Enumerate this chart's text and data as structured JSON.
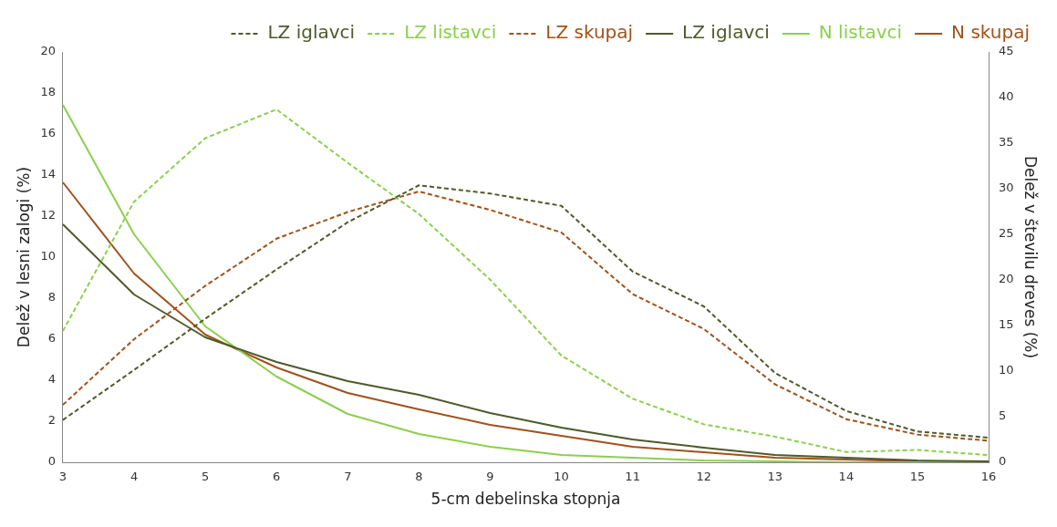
{
  "chart_data": {
    "type": "line",
    "xlabel": "5-cm debelinska stopnja",
    "ylabel": "Delež v lesni zalogi (%)",
    "y2label": "Delež v številu dreves (%)",
    "categories": [
      "3",
      "4",
      "5",
      "6",
      "7",
      "8",
      "9",
      "10",
      "11",
      "12",
      "13",
      "14",
      "15",
      "16"
    ],
    "ylim": [
      0,
      20
    ],
    "yticks": [
      0,
      2,
      4,
      6,
      8,
      10,
      12,
      14,
      16,
      18,
      20
    ],
    "y2lim": [
      0,
      45
    ],
    "y2ticks": [
      0,
      5,
      10,
      15,
      20,
      25,
      30,
      35,
      40,
      45
    ],
    "grid": false,
    "legend": "top right",
    "marker": "none",
    "series": [
      {
        "name": "LZ iglavci",
        "color": "#4e5a2a",
        "line_style": "dashed",
        "values": [
          2.06,
          4.5,
          7.0,
          9.4,
          11.7,
          13.5,
          13.1,
          12.5,
          9.3,
          7.6,
          4.35,
          2.5,
          1.5,
          1.2
        ]
      },
      {
        "name": "LZ listavci",
        "color": "#8ccf4d",
        "line_style": "dashed",
        "values": [
          6.4,
          12.7,
          15.8,
          17.2,
          14.6,
          12.1,
          8.9,
          5.2,
          3.1,
          1.85,
          1.25,
          0.5,
          0.6,
          0.35
        ]
      },
      {
        "name": "LZ skupaj",
        "color": "#a0521c",
        "line_style": "dashed",
        "values": [
          2.8,
          6.0,
          8.6,
          10.9,
          12.2,
          13.2,
          12.3,
          11.2,
          8.2,
          6.5,
          3.8,
          2.1,
          1.35,
          1.05
        ]
      },
      {
        "name": "LZ iglavci",
        "color": "#4e5a2a",
        "line_style": "solid",
        "axis": "y2",
        "values": [
          26.1,
          18.4,
          13.7,
          11.0,
          8.9,
          7.4,
          5.4,
          3.8,
          2.5,
          1.6,
          0.8,
          0.5,
          0.2,
          0.1
        ]
      },
      {
        "name": "N listavci",
        "color": "#8ccf4d",
        "line_style": "solid",
        "axis": "y2",
        "values": [
          39.2,
          25.0,
          14.9,
          9.4,
          5.3,
          3.1,
          1.7,
          0.8,
          0.5,
          0.2,
          0.1,
          0,
          0,
          0
        ]
      },
      {
        "name": "N skupaj",
        "color": "#a0521c",
        "line_style": "solid",
        "axis": "y2",
        "values": [
          30.7,
          20.7,
          14.0,
          10.4,
          7.6,
          5.8,
          4.1,
          2.9,
          1.7,
          1.1,
          0.5,
          0.3,
          0.1,
          0
        ]
      }
    ]
  }
}
